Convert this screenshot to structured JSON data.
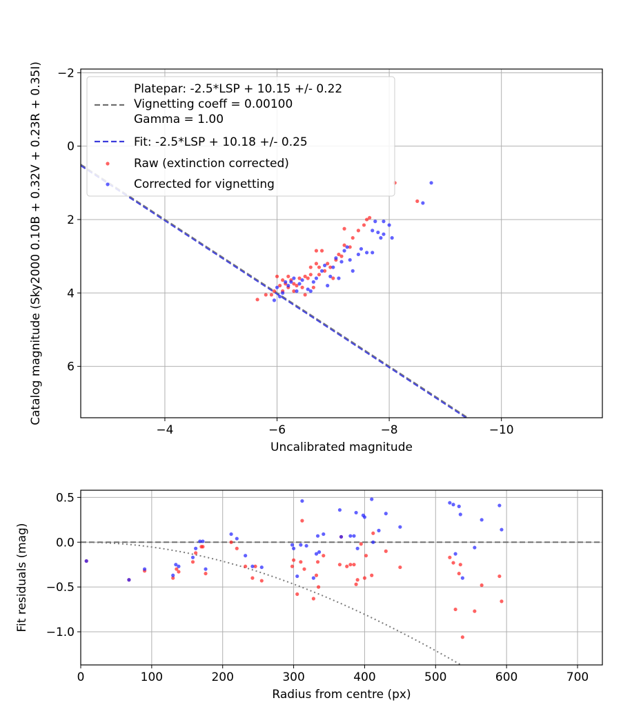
{
  "chart_data": [
    {
      "type": "scatter",
      "xlabel": "Uncalibrated magnitude",
      "ylabel": "Catalog magnitude (Sky2000 0.10B + 0.32V + 0.23R + 0.35I)",
      "xlim": [
        -2.5,
        -11.8
      ],
      "ylim": [
        7.4,
        -2.1
      ],
      "x_inverted": true,
      "y_inverted": true,
      "xticks": [
        -4,
        -6,
        -8,
        -10
      ],
      "xtick_labels": [
        "−4",
        "−6",
        "−8",
        "−10"
      ],
      "yticks": [
        -2,
        0,
        2,
        4,
        6
      ],
      "ytick_labels": [
        "−2",
        "0",
        "2",
        "4",
        "6"
      ],
      "grid": true,
      "legend_position": "top-left",
      "lines": [
        {
          "name": "Platepar: -2.5*LSP + 10.15 +/- 0.22\nVignetting coeff = 0.00100\nGamma = 1.00",
          "slope": -2.5,
          "intercept": 10.15,
          "style": "dashed",
          "color": "#6e6e6e"
        },
        {
          "name": "Fit: -2.5*LSP + 10.18 +/- 0.25",
          "slope": -2.5,
          "intercept": 10.18,
          "style": "dashed",
          "color": "#3b3bdc"
        }
      ],
      "series": [
        {
          "name": "Raw (extinction corrected)",
          "color": "#ff2020",
          "points": [
            [
              -5.65,
              4.18
            ],
            [
              -5.8,
              4.05
            ],
            [
              -5.9,
              4.05
            ],
            [
              -5.95,
              3.95
            ],
            [
              -6.0,
              3.55
            ],
            [
              -6.05,
              3.8
            ],
            [
              -6.1,
              3.65
            ],
            [
              -6.1,
              3.95
            ],
            [
              -6.15,
              3.75
            ],
            [
              -6.2,
              3.85
            ],
            [
              -6.2,
              3.55
            ],
            [
              -6.25,
              3.65
            ],
            [
              -6.3,
              3.95
            ],
            [
              -6.3,
              3.75
            ],
            [
              -6.35,
              3.8
            ],
            [
              -6.4,
              3.6
            ],
            [
              -6.45,
              3.85
            ],
            [
              -6.5,
              4.05
            ],
            [
              -6.5,
              3.55
            ],
            [
              -6.55,
              3.6
            ],
            [
              -6.6,
              3.3
            ],
            [
              -6.6,
              3.5
            ],
            [
              -6.65,
              3.85
            ],
            [
              -6.7,
              3.2
            ],
            [
              -6.7,
              2.85
            ],
            [
              -6.75,
              3.3
            ],
            [
              -6.75,
              3.5
            ],
            [
              -6.8,
              2.85
            ],
            [
              -6.85,
              3.4
            ],
            [
              -6.9,
              3.2
            ],
            [
              -6.95,
              3.3
            ],
            [
              -7.0,
              3.6
            ],
            [
              -7.05,
              3.1
            ],
            [
              -7.1,
              2.95
            ],
            [
              -7.15,
              3.0
            ],
            [
              -7.2,
              2.7
            ],
            [
              -7.2,
              2.25
            ],
            [
              -7.3,
              2.75
            ],
            [
              -7.35,
              2.5
            ],
            [
              -7.45,
              2.3
            ],
            [
              -7.55,
              2.15
            ],
            [
              -7.6,
              2.0
            ],
            [
              -7.65,
              1.95
            ],
            [
              -8.1,
              1.0
            ],
            [
              -8.5,
              1.5
            ]
          ]
        },
        {
          "name": "Corrected for vignetting",
          "color": "#2020ff",
          "points": [
            [
              -5.95,
              4.2
            ],
            [
              -6.0,
              3.85
            ],
            [
              -6.05,
              4.1
            ],
            [
              -6.1,
              4.0
            ],
            [
              -6.15,
              3.7
            ],
            [
              -6.2,
              3.8
            ],
            [
              -6.25,
              3.7
            ],
            [
              -6.3,
              3.6
            ],
            [
              -6.35,
              3.95
            ],
            [
              -6.4,
              3.75
            ],
            [
              -6.45,
              3.65
            ],
            [
              -6.55,
              3.9
            ],
            [
              -6.6,
              3.95
            ],
            [
              -6.65,
              3.7
            ],
            [
              -6.7,
              3.6
            ],
            [
              -6.8,
              3.4
            ],
            [
              -6.85,
              3.25
            ],
            [
              -6.9,
              3.8
            ],
            [
              -6.95,
              3.55
            ],
            [
              -7.0,
              3.3
            ],
            [
              -7.05,
              3.05
            ],
            [
              -7.1,
              3.6
            ],
            [
              -7.15,
              3.15
            ],
            [
              -7.2,
              2.85
            ],
            [
              -7.25,
              2.75
            ],
            [
              -7.3,
              3.1
            ],
            [
              -7.35,
              3.4
            ],
            [
              -7.45,
              2.95
            ],
            [
              -7.5,
              2.8
            ],
            [
              -7.6,
              2.9
            ],
            [
              -7.7,
              2.3
            ],
            [
              -7.7,
              2.9
            ],
            [
              -7.75,
              2.05
            ],
            [
              -7.8,
              2.35
            ],
            [
              -7.85,
              2.5
            ],
            [
              -7.9,
              2.05
            ],
            [
              -7.9,
              2.4
            ],
            [
              -8.0,
              2.15
            ],
            [
              -8.05,
              2.5
            ],
            [
              -8.6,
              1.55
            ],
            [
              -8.75,
              1.0
            ]
          ]
        }
      ]
    },
    {
      "type": "scatter",
      "xlabel": "Radius from centre (px)",
      "ylabel": "Fit residuals (mag)",
      "xlim": [
        0,
        735
      ],
      "ylim": [
        -1.37,
        0.58
      ],
      "xticks": [
        0,
        100,
        200,
        300,
        400,
        500,
        600,
        700
      ],
      "xtick_labels": [
        "0",
        "100",
        "200",
        "300",
        "400",
        "500",
        "600",
        "700"
      ],
      "yticks": [
        0.5,
        0.0,
        -0.5,
        -1.0
      ],
      "ytick_labels": [
        "0.5",
        "0.0",
        "−0.5",
        "−1.0"
      ],
      "grid": true,
      "reference_line": {
        "y": 0.0,
        "style": "dashed",
        "color": "#6e6e6e"
      },
      "vignetting_curve": {
        "coeff": 0.001,
        "style": "dotted",
        "color": "#7a7a7a"
      },
      "series": [
        {
          "name": "Raw (extinction corrected)",
          "color": "#ff2020",
          "points": [
            [
              8,
              -0.21
            ],
            [
              68,
              -0.42
            ],
            [
              90,
              -0.32
            ],
            [
              130,
              -0.4
            ],
            [
              135,
              -0.3
            ],
            [
              138,
              -0.33
            ],
            [
              158,
              -0.22
            ],
            [
              162,
              -0.12
            ],
            [
              170,
              -0.05
            ],
            [
              172,
              -0.05
            ],
            [
              176,
              -0.35
            ],
            [
              212,
              -0.0
            ],
            [
              220,
              -0.07
            ],
            [
              232,
              -0.27
            ],
            [
              242,
              -0.4
            ],
            [
              246,
              -0.27
            ],
            [
              255,
              -0.43
            ],
            [
              298,
              -0.27
            ],
            [
              300,
              -0.2
            ],
            [
              305,
              -0.58
            ],
            [
              310,
              -0.22
            ],
            [
              312,
              0.24
            ],
            [
              315,
              -0.3
            ],
            [
              328,
              -0.63
            ],
            [
              332,
              -0.37
            ],
            [
              334,
              -0.22
            ],
            [
              335,
              -0.5
            ],
            [
              342,
              -0.15
            ],
            [
              365,
              -0.25
            ],
            [
              367,
              0.06
            ],
            [
              375,
              -0.27
            ],
            [
              380,
              -0.25
            ],
            [
              385,
              -0.25
            ],
            [
              388,
              -0.47
            ],
            [
              390,
              -0.42
            ],
            [
              395,
              -0.02
            ],
            [
              400,
              -0.4
            ],
            [
              402,
              -0.15
            ],
            [
              410,
              -0.37
            ],
            [
              412,
              0.1
            ],
            [
              430,
              -0.1
            ],
            [
              450,
              -0.28
            ],
            [
              520,
              -0.17
            ],
            [
              525,
              -0.23
            ],
            [
              528,
              -0.75
            ],
            [
              533,
              -0.35
            ],
            [
              535,
              -0.25
            ],
            [
              538,
              -1.06
            ],
            [
              555,
              -0.77
            ],
            [
              565,
              -0.48
            ],
            [
              590,
              -0.38
            ],
            [
              593,
              -0.66
            ]
          ]
        },
        {
          "name": "Corrected for vignetting",
          "color": "#2020ff",
          "points": [
            [
              8,
              -0.21
            ],
            [
              68,
              -0.42
            ],
            [
              90,
              -0.3
            ],
            [
              130,
              -0.37
            ],
            [
              134,
              -0.25
            ],
            [
              138,
              -0.27
            ],
            [
              158,
              -0.17
            ],
            [
              162,
              -0.07
            ],
            [
              168,
              0.01
            ],
            [
              172,
              0.01
            ],
            [
              176,
              -0.3
            ],
            [
              212,
              0.09
            ],
            [
              220,
              0.04
            ],
            [
              232,
              -0.15
            ],
            [
              242,
              -0.27
            ],
            [
              255,
              -0.28
            ],
            [
              298,
              -0.03
            ],
            [
              300,
              -0.07
            ],
            [
              305,
              -0.38
            ],
            [
              310,
              -0.03
            ],
            [
              312,
              0.46
            ],
            [
              318,
              -0.04
            ],
            [
              328,
              -0.4
            ],
            [
              332,
              -0.13
            ],
            [
              334,
              0.07
            ],
            [
              336,
              -0.11
            ],
            [
              342,
              0.09
            ],
            [
              365,
              0.36
            ],
            [
              367,
              0.06
            ],
            [
              380,
              0.07
            ],
            [
              385,
              0.07
            ],
            [
              388,
              0.33
            ],
            [
              390,
              -0.07
            ],
            [
              398,
              0.3
            ],
            [
              400,
              0.28
            ],
            [
              410,
              0.48
            ],
            [
              412,
              0.0
            ],
            [
              420,
              0.13
            ],
            [
              430,
              0.32
            ],
            [
              450,
              0.17
            ],
            [
              520,
              0.44
            ],
            [
              525,
              0.42
            ],
            [
              528,
              -0.13
            ],
            [
              533,
              0.4
            ],
            [
              535,
              0.31
            ],
            [
              538,
              -0.4
            ],
            [
              555,
              -0.06
            ],
            [
              565,
              0.25
            ],
            [
              590,
              0.41
            ],
            [
              593,
              0.14
            ]
          ]
        }
      ]
    }
  ]
}
